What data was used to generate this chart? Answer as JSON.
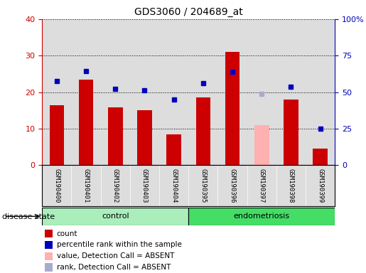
{
  "title": "GDS3060 / 204689_at",
  "samples": [
    "GSM190400",
    "GSM190401",
    "GSM190402",
    "GSM190403",
    "GSM190404",
    "GSM190395",
    "GSM190396",
    "GSM190397",
    "GSM190398",
    "GSM190399"
  ],
  "bar_values": [
    16.5,
    23.5,
    15.8,
    15.0,
    8.5,
    18.5,
    31.0,
    null,
    18.0,
    4.5
  ],
  "absent_bar_values": [
    null,
    null,
    null,
    null,
    null,
    null,
    null,
    11.0,
    null,
    null
  ],
  "dot_values_left": [
    23.0,
    25.8,
    20.8,
    20.5,
    18.0,
    22.5,
    25.5,
    19.5,
    21.5,
    10.0
  ],
  "dot_absent": [
    false,
    false,
    false,
    false,
    false,
    false,
    false,
    true,
    false,
    false
  ],
  "ylim_left": [
    0,
    40
  ],
  "ylim_right": [
    0,
    100
  ],
  "yticks_left": [
    0,
    10,
    20,
    30,
    40
  ],
  "yticks_right": [
    0,
    25,
    50,
    75,
    100
  ],
  "ytick_labels_right": [
    "0",
    "25",
    "50",
    "75",
    "100%"
  ],
  "bar_color_red": "#CC0000",
  "bar_color_pink": "#FFB0B0",
  "dot_color_blue": "#0000BB",
  "dot_color_lightblue": "#AAAACC",
  "bg_color": "#DDDDDD",
  "control_color": "#AAEEBB",
  "endometriosis_color": "#44DD66",
  "legend_items": [
    {
      "label": "count",
      "color": "#CC0000"
    },
    {
      "label": "percentile rank within the sample",
      "color": "#0000BB"
    },
    {
      "label": "value, Detection Call = ABSENT",
      "color": "#FFB0B0"
    },
    {
      "label": "rank, Detection Call = ABSENT",
      "color": "#AAAACC"
    }
  ],
  "fig_width": 5.15,
  "fig_height": 3.84,
  "dpi": 100
}
